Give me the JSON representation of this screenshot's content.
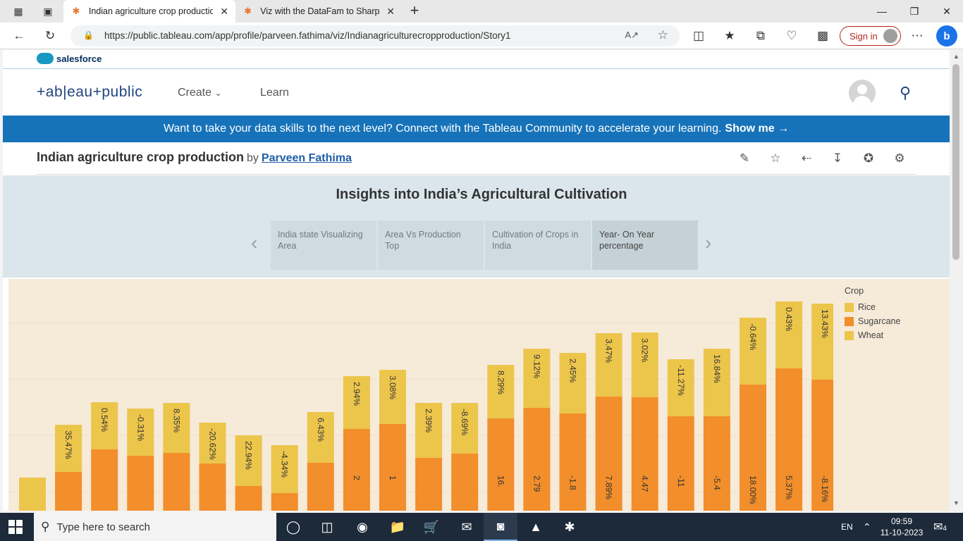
{
  "browser": {
    "tabs": [
      {
        "title": "Indian agriculture crop productio",
        "icon": "tableau-icon",
        "active": true
      },
      {
        "title": "Viz with the DataFam to Sharpen",
        "icon": "tableau-icon",
        "active": false
      }
    ],
    "url": "https://public.tableau.com/app/profile/parveen.fathima/viz/Indianagriculturecropproduction/Story1",
    "sign_in": "Sign in"
  },
  "site": {
    "brand": "salesforce",
    "logo": "+ab|eau+public",
    "nav": [
      "Create",
      "Learn"
    ],
    "banner_text": "Want to take your data skills to the next level? Connect with the Tableau Community to accelerate your learning.",
    "banner_link": "Show me →"
  },
  "viz": {
    "title": "Indian agriculture crop production",
    "by": "by",
    "author": "Parveen Fathima"
  },
  "story": {
    "title": "Insights into India’s Agricultural Cultivation",
    "points": [
      "India state Visualizing Area",
      "Area Vs Production Top",
      "Cultivation of Crops in India",
      "Year- On Year percentage"
    ],
    "active_index": 3
  },
  "chart_data": {
    "type": "bar",
    "stacked": true,
    "legend_title": "Crop",
    "legend": [
      "Rice",
      "Sugarcane",
      "Wheat"
    ],
    "colors": {
      "Rice": "#ecc54b",
      "Sugarcane": "#f28e2b",
      "Wheat": "#ecc54b"
    },
    "axes_visible": false,
    "bars": [
      {
        "top": 47,
        "sub": 0,
        "top_label": "",
        "sub_label": ""
      },
      {
        "top": 122,
        "sub": 55,
        "top_label": "35.47%",
        "sub_label": ""
      },
      {
        "top": 154,
        "sub": 87,
        "top_label": "0.54%",
        "sub_label": ""
      },
      {
        "top": 145,
        "sub": 78,
        "top_label": "-0.31%",
        "sub_label": ""
      },
      {
        "top": 153,
        "sub": 82,
        "top_label": "8.35%",
        "sub_label": ""
      },
      {
        "top": 125,
        "sub": 67,
        "top_label": "-20.62%",
        "sub_label": ""
      },
      {
        "top": 107,
        "sub": 35,
        "top_label": "22.94%",
        "sub_label": ""
      },
      {
        "top": 93,
        "sub": 25,
        "top_label": "-4.34%",
        "sub_label": ""
      },
      {
        "top": 140,
        "sub": 68,
        "top_label": "6.43%",
        "sub_label": ""
      },
      {
        "top": 191,
        "sub": 116,
        "top_label": "2.94%",
        "sub_label": "2"
      },
      {
        "top": 200,
        "sub": 123,
        "top_label": "3.08%",
        "sub_label": "1"
      },
      {
        "top": 153,
        "sub": 75,
        "top_label": "2.39%",
        "sub_label": ""
      },
      {
        "top": 153,
        "sub": 81,
        "top_label": "-8.69%",
        "sub_label": ""
      },
      {
        "top": 207,
        "sub": 131,
        "top_label": "8.29%",
        "sub_label": "16."
      },
      {
        "top": 230,
        "sub": 146,
        "top_label": "9.12%",
        "sub_label": "2.79"
      },
      {
        "top": 224,
        "sub": 138,
        "top_label": "2.45%",
        "sub_label": "-1.8"
      },
      {
        "top": 252,
        "sub": 162,
        "top_label": "3.47%",
        "sub_label": "7.89%"
      },
      {
        "top": 253,
        "sub": 161,
        "top_label": "3.02%",
        "sub_label": "4.47"
      },
      {
        "top": 215,
        "sub": 134,
        "top_label": "-11.27%",
        "sub_label": "-11"
      },
      {
        "top": 230,
        "sub": 134,
        "top_label": "16.84%",
        "sub_label": "-5.4"
      },
      {
        "top": 274,
        "sub": 179,
        "top_label": "-0.64%",
        "sub_label": "18.00%"
      },
      {
        "top": 297,
        "sub": 202,
        "top_label": "0.43%",
        "sub_label": "5.37%"
      },
      {
        "top": 294,
        "sub": 186,
        "top_label": "13.43%",
        "sub_label": "-8.16%"
      }
    ]
  },
  "taskbar": {
    "search_placeholder": "Type here to search",
    "lang": "EN",
    "time": "09:59",
    "date": "11-10-2023",
    "notifications": "4"
  }
}
